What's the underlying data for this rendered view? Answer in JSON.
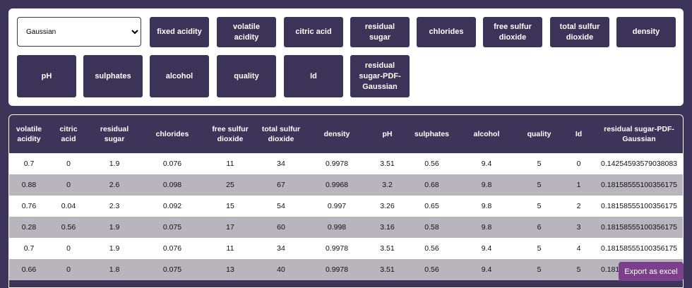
{
  "controls": {
    "select_value": "Gaussian",
    "buttons": [
      "fixed acidity",
      "volatile acidity",
      "citric acid",
      "residual sugar",
      "chlorides",
      "free sulfur dioxide",
      "total sulfur dioxide",
      "density",
      "pH",
      "sulphates",
      "alcohol",
      "quality",
      "Id",
      "residual sugar-PDF-Gaussian"
    ]
  },
  "table": {
    "headers": [
      "volatile acidity",
      "citric acid",
      "residual sugar",
      "chlorides",
      "free sulfur dioxide",
      "total sulfur dioxide",
      "density",
      "pH",
      "sulphates",
      "alcohol",
      "quality",
      "Id",
      "residual sugar-PDF-Gaussian"
    ],
    "rows": [
      [
        "0.7",
        "0",
        "1.9",
        "0.076",
        "11",
        "34",
        "0.9978",
        "3.51",
        "0.56",
        "9.4",
        "5",
        "0",
        "0.14254593579038083"
      ],
      [
        "0.88",
        "0",
        "2.6",
        "0.098",
        "25",
        "67",
        "0.9968",
        "3.2",
        "0.68",
        "9.8",
        "5",
        "1",
        "0.18158555100356175"
      ],
      [
        "0.76",
        "0.04",
        "2.3",
        "0.092",
        "15",
        "54",
        "0.997",
        "3.26",
        "0.65",
        "9.8",
        "5",
        "2",
        "0.18158555100356175"
      ],
      [
        "0.28",
        "0.56",
        "1.9",
        "0.075",
        "17",
        "60",
        "0.998",
        "3.16",
        "0.58",
        "9.8",
        "6",
        "3",
        "0.18158555100356175"
      ],
      [
        "0.7",
        "0",
        "1.9",
        "0.076",
        "11",
        "34",
        "0.9978",
        "3.51",
        "0.56",
        "9.4",
        "5",
        "4",
        "0.18158555100356175"
      ],
      [
        "0.66",
        "0",
        "1.8",
        "0.075",
        "13",
        "40",
        "0.9978",
        "3.51",
        "0.56",
        "9.4",
        "5",
        "5",
        "0.18158555100356175"
      ]
    ]
  },
  "export_button": "Export as excel"
}
